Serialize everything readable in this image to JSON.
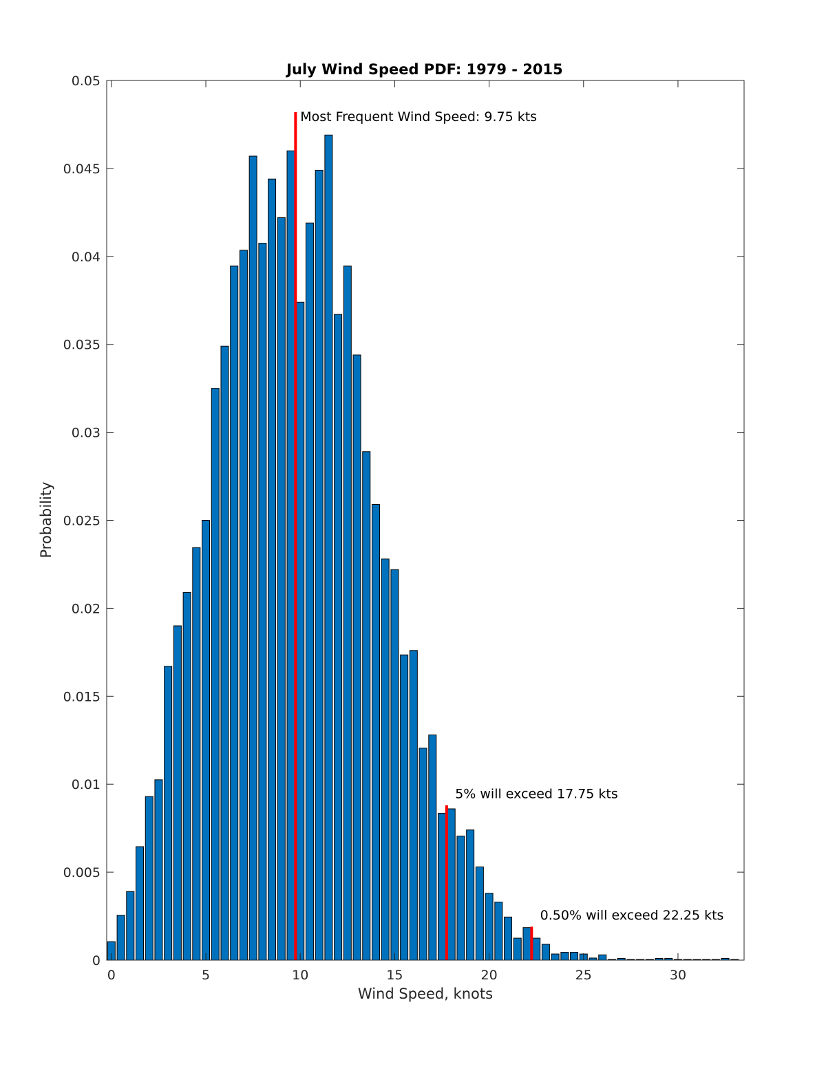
{
  "chart_data": {
    "type": "bar",
    "title": "July Wind Speed PDF: 1979 - 2015",
    "xlabel": "Wind Speed, knots",
    "ylabel": "Probability",
    "xlim": [
      -0.25,
      33.5
    ],
    "ylim": [
      0,
      0.05
    ],
    "grid": false,
    "legend": "none",
    "bin_width": 0.5,
    "x_ticks": [
      0,
      5,
      10,
      15,
      20,
      25,
      30
    ],
    "y_ticks": [
      0,
      0.005,
      0.01,
      0.015,
      0.02,
      0.025,
      0.03,
      0.035,
      0.04,
      0.045,
      0.05
    ],
    "x_tick_labels": [
      "0",
      "5",
      "10",
      "15",
      "20",
      "25",
      "30"
    ],
    "y_tick_labels": [
      "0",
      "0.005",
      "0.01",
      "0.015",
      "0.02",
      "0.025",
      "0.03",
      "0.035",
      "0.04",
      "0.045",
      "0.05"
    ],
    "bar_color": "#0072BD",
    "marker_color": "#FF0000",
    "series": [
      {
        "x": [
          0,
          0.5,
          1,
          1.5,
          2,
          2.5,
          3,
          3.5,
          4,
          4.5,
          5,
          5.5,
          6,
          6.5,
          7,
          7.5,
          8,
          8.5,
          9,
          9.5,
          10,
          10.5,
          11,
          11.5,
          12,
          12.5,
          13,
          13.5,
          14,
          14.5,
          15,
          15.5,
          16,
          16.5,
          17,
          17.5,
          18,
          18.5,
          19,
          19.5,
          20,
          20.5,
          21,
          21.5,
          22,
          22.5,
          23,
          23.5,
          24,
          24.5,
          25,
          25.5,
          26,
          26.5,
          27,
          27.5,
          28,
          28.5,
          29,
          29.5,
          30,
          30.5,
          31,
          31.5,
          32,
          32.5,
          33
        ],
        "values": [
          0.00105,
          0.00255,
          0.0039,
          0.00645,
          0.0093,
          0.01025,
          0.0167,
          0.019,
          0.0209,
          0.02345,
          0.025,
          0.0325,
          0.0349,
          0.03945,
          0.04035,
          0.0457,
          0.04075,
          0.0444,
          0.0422,
          0.046,
          0.0374,
          0.0419,
          0.0449,
          0.0469,
          0.0367,
          0.03945,
          0.0344,
          0.0289,
          0.0259,
          0.0228,
          0.0222,
          0.01735,
          0.0176,
          0.01205,
          0.0128,
          0.00835,
          0.0086,
          0.00705,
          0.0074,
          0.0053,
          0.0038,
          0.0033,
          0.00245,
          0.00125,
          0.00185,
          0.00125,
          0.0009,
          0.00035,
          0.00045,
          0.00045,
          0.00035,
          0.00012,
          0.0003,
          4e-05,
          0.0001,
          4e-05,
          4e-05,
          4e-05,
          0.0001,
          0.0001,
          4e-05,
          4e-05,
          4e-05,
          4e-05,
          4e-05,
          0.0001,
          4e-05
        ]
      }
    ],
    "markers": [
      {
        "x": 9.75,
        "y_top": 0.0482,
        "label": "Most Frequent Wind Speed: 9.75 kts",
        "label_x": 10.0,
        "label_y": 0.0477
      },
      {
        "x": 17.75,
        "y_top": 0.0088,
        "label": "5% will exceed 17.75 kts",
        "label_x": 18.2,
        "label_y": 0.0092
      },
      {
        "x": 22.25,
        "y_top": 0.0019,
        "label": "0.50% will exceed 22.25 kts",
        "label_x": 22.7,
        "label_y": 0.0023
      }
    ]
  }
}
